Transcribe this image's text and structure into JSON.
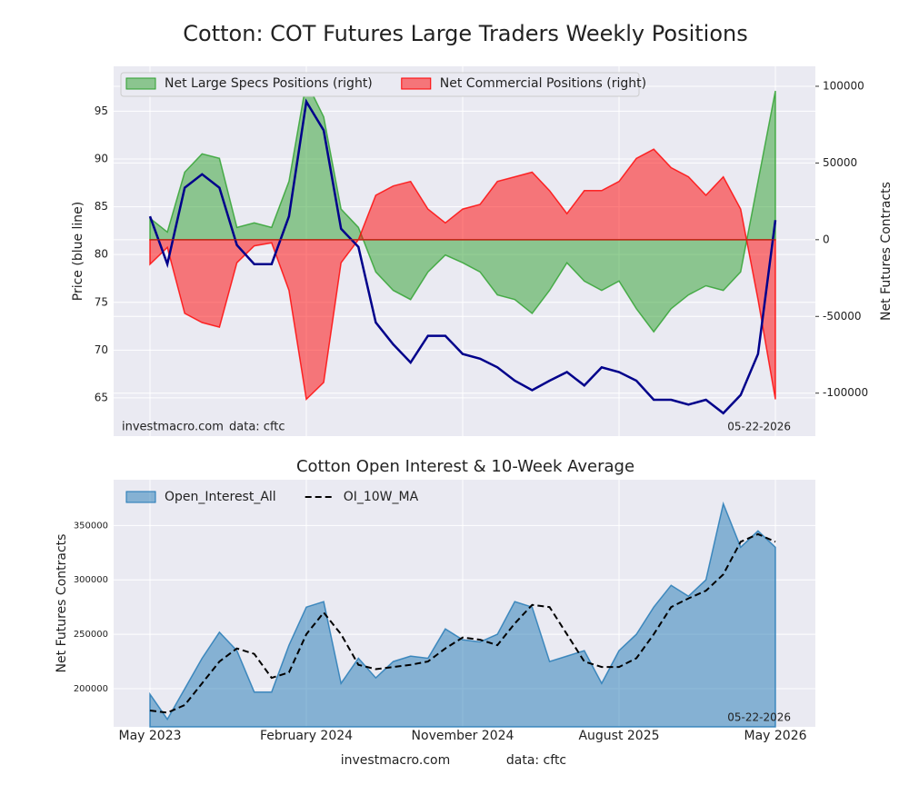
{
  "chart_data": [
    {
      "type": "area",
      "title": "Cotton: COT Futures Large Traders Weekly Positions",
      "ylabel": "Price (blue line)",
      "y2label": "Net Futures Contracts",
      "watermark": "investmacro.com",
      "source": "data: cftc",
      "date_label": "05-22-2026",
      "legend": "upper left",
      "grid": true,
      "x": [
        "2023-05",
        "2023-06",
        "2023-07",
        "2023-08",
        "2023-09",
        "2023-10",
        "2023-11",
        "2023-12",
        "2024-01",
        "2024-02",
        "2024-03",
        "2024-04",
        "2024-05",
        "2024-06",
        "2024-07",
        "2024-08",
        "2024-09",
        "2024-10",
        "2024-11",
        "2024-12",
        "2025-01",
        "2025-02",
        "2025-03",
        "2025-04",
        "2025-05",
        "2025-06",
        "2025-07",
        "2025-08",
        "2025-09",
        "2025-10",
        "2025-11",
        "2025-12",
        "2026-01",
        "2026-02",
        "2026-03",
        "2026-04",
        "2026-05"
      ],
      "ylim": [
        61,
        99.7
      ],
      "yticks": [
        65,
        70,
        75,
        80,
        85,
        90,
        95
      ],
      "y2lim": [
        -128000,
        113000
      ],
      "y2ticks": [
        -100000,
        -50000,
        0,
        50000,
        100000
      ],
      "series": [
        {
          "name": "Net Large Specs Positions (right)",
          "style": "area",
          "axis": "y2",
          "color": "#2ca02c",
          "values": [
            14000,
            5000,
            44000,
            56000,
            53000,
            8000,
            11000,
            8000,
            38000,
            103000,
            80000,
            20000,
            8000,
            -21000,
            -33000,
            -39000,
            -21000,
            -10000,
            -15000,
            -21000,
            -36000,
            -39000,
            -48000,
            -33000,
            -15000,
            -27000,
            -33000,
            -27000,
            -45000,
            -60000,
            -45000,
            -36000,
            -30000,
            -33000,
            -21000,
            38000,
            97000
          ]
        },
        {
          "name": "Net Commercial Positions (right)",
          "style": "area",
          "axis": "y2",
          "color": "#ff0000",
          "values": [
            -16000,
            -5000,
            -48000,
            -54000,
            -57000,
            -15000,
            -4000,
            -2000,
            -33000,
            -104000,
            -93000,
            -15000,
            0,
            29000,
            35000,
            38000,
            20000,
            11000,
            20000,
            23000,
            38000,
            41000,
            44000,
            32000,
            17000,
            32000,
            32000,
            38000,
            53000,
            59000,
            47000,
            41000,
            29000,
            41000,
            20000,
            -39000,
            -104000
          ]
        },
        {
          "style": "line",
          "axis": "y",
          "color": "#00008b",
          "values": [
            84,
            79,
            87,
            88.4,
            87,
            81,
            79,
            79,
            84,
            96,
            93,
            82.7,
            80.8,
            72.9,
            70.6,
            68.7,
            71.5,
            71.5,
            69.6,
            69.1,
            68.2,
            66.8,
            65.8,
            66.8,
            67.7,
            66.3,
            68.2,
            67.7,
            66.8,
            64.8,
            64.8,
            64.3,
            64.8,
            63.4,
            65.3,
            69.6,
            83.6
          ]
        }
      ]
    },
    {
      "type": "area",
      "title": "Cotton Open Interest & 10-Week Average",
      "ylabel": "Net Futures Contracts",
      "date_label": "05-22-2026",
      "legend": "upper left",
      "grid": true,
      "x": [
        "2023-05",
        "2023-06",
        "2023-07",
        "2023-08",
        "2023-09",
        "2023-10",
        "2023-11",
        "2023-12",
        "2024-01",
        "2024-02",
        "2024-03",
        "2024-04",
        "2024-05",
        "2024-06",
        "2024-07",
        "2024-08",
        "2024-09",
        "2024-10",
        "2024-11",
        "2024-12",
        "2025-01",
        "2025-02",
        "2025-03",
        "2025-04",
        "2025-05",
        "2025-06",
        "2025-07",
        "2025-08",
        "2025-09",
        "2025-10",
        "2025-11",
        "2025-12",
        "2026-01",
        "2026-02",
        "2026-03",
        "2026-04",
        "2026-05"
      ],
      "xticks": [
        {
          "value": "2023-05",
          "label": "May 2023"
        },
        {
          "value": "2024-02",
          "label": "February 2024"
        },
        {
          "value": "2024-11",
          "label": "November 2024"
        },
        {
          "value": "2025-08",
          "label": "August 2025"
        },
        {
          "value": "2026-05",
          "label": "May 2026"
        }
      ],
      "ylim": [
        165000,
        392000
      ],
      "yticks": [
        200000,
        250000,
        300000,
        350000
      ],
      "series": [
        {
          "name": "Open_Interest_All",
          "style": "area",
          "axis": "y",
          "color": "#1f77b4",
          "values": [
            195000,
            172000,
            200000,
            228000,
            252000,
            235000,
            197000,
            197000,
            240000,
            275000,
            280000,
            205000,
            228000,
            210000,
            225000,
            230000,
            228000,
            255000,
            245000,
            243000,
            250000,
            280000,
            275000,
            225000,
            230000,
            235000,
            205000,
            235000,
            250000,
            275000,
            295000,
            285000,
            300000,
            370000,
            330000,
            345000,
            330000
          ]
        },
        {
          "name": "OI_10W_MA",
          "style": "dashed",
          "axis": "y",
          "color": "#000000",
          "values": [
            180000,
            178000,
            185000,
            205000,
            225000,
            237000,
            232000,
            210000,
            215000,
            250000,
            270000,
            250000,
            222000,
            218000,
            220000,
            222000,
            225000,
            237000,
            247000,
            245000,
            240000,
            260000,
            277000,
            275000,
            250000,
            225000,
            220000,
            220000,
            228000,
            250000,
            275000,
            283000,
            290000,
            305000,
            335000,
            342000,
            335000
          ]
        }
      ]
    }
  ],
  "footer": {
    "site": "investmacro.com",
    "source": "data: cftc"
  }
}
